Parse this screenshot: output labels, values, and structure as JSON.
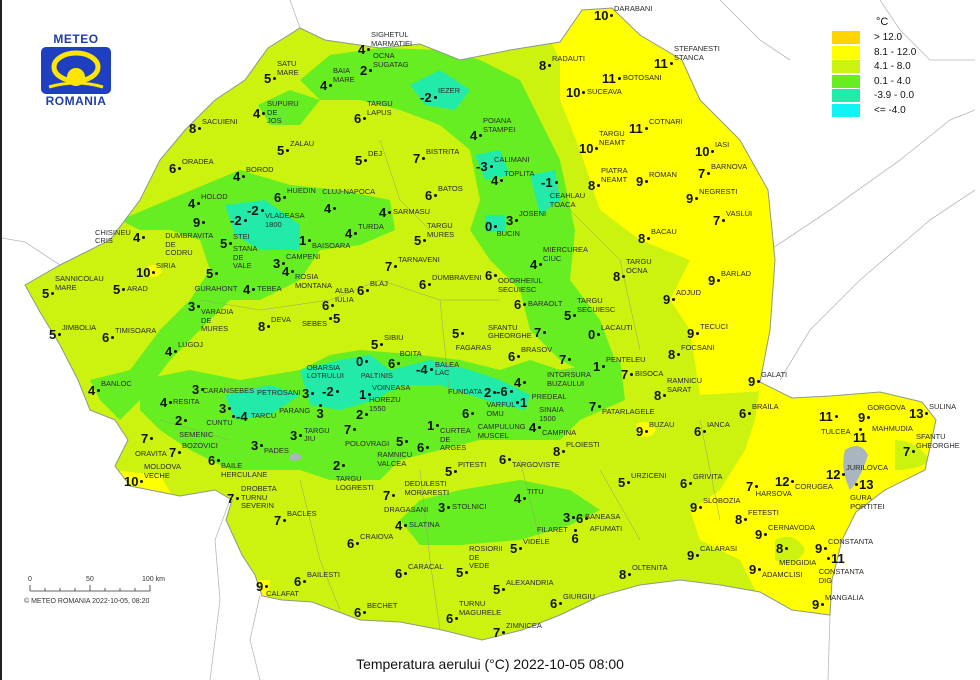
{
  "title": "Temperatura aerului (°C) 2022-10-05 08:00",
  "logo": {
    "top": "METEO",
    "bottom": "ROMANIA"
  },
  "copyright": "© METEO ROMANIA 2022-10-05, 08:20",
  "scale_bar": {
    "labels": [
      "0",
      "50",
      "100 km"
    ]
  },
  "legend": {
    "unit": "°C",
    "classes": [
      {
        "label": "> 12.0",
        "color": "#ffd500"
      },
      {
        "label": "8.1 - 12.0",
        "color": "#ffff00"
      },
      {
        "label": "4.1 - 8.0",
        "color": "#ccf20f"
      },
      {
        "label": "0.1 - 4.0",
        "color": "#66ee22"
      },
      {
        "label": "-3.9 - 0.0",
        "color": "#22eaa8"
      },
      {
        "label": "<= -4.0",
        "color": "#10f4f4"
      }
    ]
  },
  "stations": [
    {
      "name": "SIGHETUL\nMARMATIEI",
      "value": "4"
    },
    {
      "name": "OCNA\nSUGATAG",
      "value": "2"
    },
    {
      "name": "SATU\nMARE",
      "value": "5"
    },
    {
      "name": "BAIA\nMARE",
      "value": "4"
    },
    {
      "name": "SUPURU\nDE\nJOS",
      "value": "4"
    },
    {
      "name": "IEZER",
      "value": "-2"
    },
    {
      "name": "TARGU\nLAPUS",
      "value": "6"
    },
    {
      "name": "SACUIENI",
      "value": "8"
    },
    {
      "name": "ZALAU",
      "value": "5"
    },
    {
      "name": "DEJ",
      "value": "5"
    },
    {
      "name": "BISTRITA",
      "value": "7"
    },
    {
      "name": "ORADEA",
      "value": "6"
    },
    {
      "name": "BOROD",
      "value": "4"
    },
    {
      "name": "VLADEASA\n1800",
      "value": "-2"
    },
    {
      "name": "HUEDIN",
      "value": "6"
    },
    {
      "name": "BATOS",
      "value": "6"
    },
    {
      "name": "CLUJ-NAPOCA",
      "value": "4"
    },
    {
      "name": "SARMASU",
      "value": "4"
    },
    {
      "name": "HOLOD",
      "value": "4"
    },
    {
      "name": "DUMBRAVITA\nDE\nCODRU",
      "value": "9"
    },
    {
      "name": "CHISINEU\nCRIS",
      "value": "4"
    },
    {
      "name": "STEI",
      "value": "5"
    },
    {
      "name": "STANA\nDE\nVALE",
      "value": "-2"
    },
    {
      "name": "BAISOARA",
      "value": "1"
    },
    {
      "name": "TURDA",
      "value": "4"
    },
    {
      "name": "TARGU\nMURES",
      "value": "5"
    },
    {
      "name": "DARABANI",
      "value": "10"
    },
    {
      "name": "RADAUTI",
      "value": "8"
    },
    {
      "name": "STEFANESTI\nSTANCA",
      "value": "11"
    },
    {
      "name": "BOTOSANI",
      "value": "11"
    },
    {
      "name": "SUCEAVA",
      "value": "10"
    },
    {
      "name": "POIANA\nSTAMPEI",
      "value": "4"
    },
    {
      "name": "COTNARI",
      "value": "11"
    },
    {
      "name": "TARGU\nNEAMT",
      "value": "10"
    },
    {
      "name": "IASI",
      "value": "10"
    },
    {
      "name": "CALIMANI",
      "value": "-3"
    },
    {
      "name": "TOPLITA",
      "value": "4"
    },
    {
      "name": "CEAHLAU\nTOACA",
      "value": "-1"
    },
    {
      "name": "PIATRA\nNEAMT",
      "value": "8"
    },
    {
      "name": "ROMAN",
      "value": "9"
    },
    {
      "name": "BARNOVA",
      "value": "7"
    },
    {
      "name": "NEGRESTI",
      "value": "9"
    },
    {
      "name": "BUCIN",
      "value": "0"
    },
    {
      "name": "JOSENI",
      "value": "3"
    },
    {
      "name": "VASLUI",
      "value": "7"
    },
    {
      "name": "BACAU",
      "value": "8"
    },
    {
      "name": "TARNAVENI",
      "value": "7"
    },
    {
      "name": "DUMBRAVENI",
      "value": "6"
    },
    {
      "name": "ODORHEIUL\nSECUIESC",
      "value": "6"
    },
    {
      "name": "MIERCUREA\nCIUC",
      "value": "4"
    },
    {
      "name": "TARGU\nOCNA",
      "value": "8"
    },
    {
      "name": "BARLAD",
      "value": "9"
    },
    {
      "name": "BLAJ",
      "value": "6"
    },
    {
      "name": "ALBA\nIULIA",
      "value": "6"
    },
    {
      "name": "SEBES",
      "value": "5"
    },
    {
      "name": "BARAOLT",
      "value": "6"
    },
    {
      "name": "TARGU\nSECUIESC",
      "value": "5"
    },
    {
      "name": "ADJUD",
      "value": "9"
    },
    {
      "name": "SFANTU\nGHEORGHE",
      "value": "7"
    },
    {
      "name": "SIBIU",
      "value": "5"
    },
    {
      "name": "FAGARAS",
      "value": "5"
    },
    {
      "name": "LACAUTI",
      "value": "0"
    },
    {
      "name": "TECUCI",
      "value": "9"
    },
    {
      "name": "BRASOV",
      "value": "6"
    },
    {
      "name": "PALTINIS",
      "value": "0"
    },
    {
      "name": "BOITA",
      "value": "6"
    },
    {
      "name": "BALEA\nLAC",
      "value": "-4"
    },
    {
      "name": "INTORSURA\nBUZAULUI",
      "value": "7"
    },
    {
      "name": "PENTELEU",
      "value": "1"
    },
    {
      "name": "BISOCA",
      "value": "7"
    },
    {
      "name": "FOCSANI",
      "value": "8"
    },
    {
      "name": "VARFUL\nOMU",
      "value": "-6"
    },
    {
      "name": "PREDEAL",
      "value": "4"
    },
    {
      "name": "FUNDATA",
      "value": "2"
    },
    {
      "name": "SINAIA\n1500",
      "value": "1"
    },
    {
      "name": "OBARSIA\nLOTRULUI",
      "value": "-2"
    },
    {
      "name": "VOINEASA",
      "value": "1"
    },
    {
      "name": "PETROSANI",
      "value": "3"
    },
    {
      "name": "PARANG",
      "value": "3"
    },
    {
      "name": "HOREZU\n1550",
      "value": "2"
    },
    {
      "name": "POLOVRAGI",
      "value": "7"
    },
    {
      "name": "CURTEA\nDE\nARGES",
      "value": "1"
    },
    {
      "name": "CAMPULUNG\nMUSCEL",
      "value": "6"
    },
    {
      "name": "CAMPINA",
      "value": "4"
    },
    {
      "name": "PATARLAGELE",
      "value": "7"
    },
    {
      "name": "RAMNICU\nSARAT",
      "value": "8"
    },
    {
      "name": "GALATI",
      "value": "9"
    },
    {
      "name": "RAMNICU\nVALCEA",
      "value": "5"
    },
    {
      "name": "DEDULESTI\nMORARESTI",
      "value": "6"
    },
    {
      "name": "BUZAU",
      "value": "9"
    },
    {
      "name": "IANCA",
      "value": "6"
    },
    {
      "name": "BRAILA",
      "value": "6"
    },
    {
      "name": "TULCEA",
      "value": "11"
    },
    {
      "name": "GORGOVA",
      "value": "9"
    },
    {
      "name": "SULINA",
      "value": "13"
    },
    {
      "name": "MAHMUDIA",
      "value": "11"
    },
    {
      "name": "SFANTU\nGHEORGHE",
      "value": "7"
    },
    {
      "name": "SIRIA",
      "value": "10"
    },
    {
      "name": "GURAHONT",
      "value": "5"
    },
    {
      "name": "CAMPENI",
      "value": "3"
    },
    {
      "name": "ROSIA\nMONTANA",
      "value": "4"
    },
    {
      "name": "SANNICOLAU\nMARE",
      "value": "5"
    },
    {
      "name": "ARAD",
      "value": "5"
    },
    {
      "name": "TEBEA",
      "value": "4"
    },
    {
      "name": "VARADIA\nDE\nMURES",
      "value": "3"
    },
    {
      "name": "DEVA",
      "value": "8"
    },
    {
      "name": "JIMBOLIA",
      "value": "5"
    },
    {
      "name": "TIMISOARA",
      "value": "6"
    },
    {
      "name": "LUGOJ",
      "value": "4"
    },
    {
      "name": "BANLOC",
      "value": "4"
    },
    {
      "name": "CARANSEBES",
      "value": "3"
    },
    {
      "name": "RESITA",
      "value": "4"
    },
    {
      "name": "CUNTU",
      "value": "3"
    },
    {
      "name": "TARCU",
      "value": "-4"
    },
    {
      "name": "SEMENIC",
      "value": "2"
    },
    {
      "name": "ORAVITA",
      "value": "7"
    },
    {
      "name": "BOZOVICI",
      "value": "7"
    },
    {
      "name": "BAILE\nHERCULANE",
      "value": "6"
    },
    {
      "name": "PADES",
      "value": "3"
    },
    {
      "name": "TARGU\nJIU",
      "value": "3"
    },
    {
      "name": "TARGU\nLOGRESTI",
      "value": "2"
    },
    {
      "name": "MOLDOVA\nVECHE",
      "value": "10"
    },
    {
      "name": "DROBETA\nTURNU\nSEVERIN",
      "value": "7"
    },
    {
      "name": "BACLES",
      "value": "7"
    },
    {
      "name": "DRAGASANI",
      "value": "7"
    },
    {
      "name": "PITESTI",
      "value": "5"
    },
    {
      "name": "TARGOVISTE",
      "value": "6"
    },
    {
      "name": "PLOIESTI",
      "value": "8"
    },
    {
      "name": "URZICENI",
      "value": "5"
    },
    {
      "name": "GRIVITA",
      "value": "6"
    },
    {
      "name": "HARSOVA",
      "value": "7"
    },
    {
      "name": "CORUGEA",
      "value": "12"
    },
    {
      "name": "JURILOVCA",
      "value": "12"
    },
    {
      "name": "GURA\nPORTITEI",
      "value": "13"
    },
    {
      "name": "STOLNICI",
      "value": "3"
    },
    {
      "name": "TITU",
      "value": "4"
    },
    {
      "name": "SLATINA",
      "value": "4"
    },
    {
      "name": "BANEASA",
      "value": "3"
    },
    {
      "name": "AFUMATI",
      "value": "6"
    },
    {
      "name": "FILARET",
      "value": "6"
    },
    {
      "name": "SLOBOZIA",
      "value": "9"
    },
    {
      "name": "FETESTI",
      "value": "8"
    },
    {
      "name": "CERNAVODA",
      "value": "9"
    },
    {
      "name": "CRAIOVA",
      "value": "6"
    },
    {
      "name": "VIDELE",
      "value": "5"
    },
    {
      "name": "ROSIORII\nDE\nVEDE",
      "value": "5"
    },
    {
      "name": "CALARASI",
      "value": "9"
    },
    {
      "name": "MEDGIDIA",
      "value": "8"
    },
    {
      "name": "CONSTANTA",
      "value": "9"
    },
    {
      "name": "CONSTANTA\nDIG",
      "value": "11"
    },
    {
      "name": "ADAMCLISI",
      "value": "9"
    },
    {
      "name": "CARACAL",
      "value": "6"
    },
    {
      "name": "ALEXANDRIA",
      "value": "5"
    },
    {
      "name": "OLTENITA",
      "value": "8"
    },
    {
      "name": "CALAFAT",
      "value": "9"
    },
    {
      "name": "BAILESTI",
      "value": "6"
    },
    {
      "name": "GIURGIU",
      "value": "6"
    },
    {
      "name": "BECHET",
      "value": "6"
    },
    {
      "name": "TURNU\nMAGURELE",
      "value": "6"
    },
    {
      "name": "ZIMNICEA",
      "value": "7"
    },
    {
      "name": "MANGALIA",
      "value": "9"
    }
  ]
}
